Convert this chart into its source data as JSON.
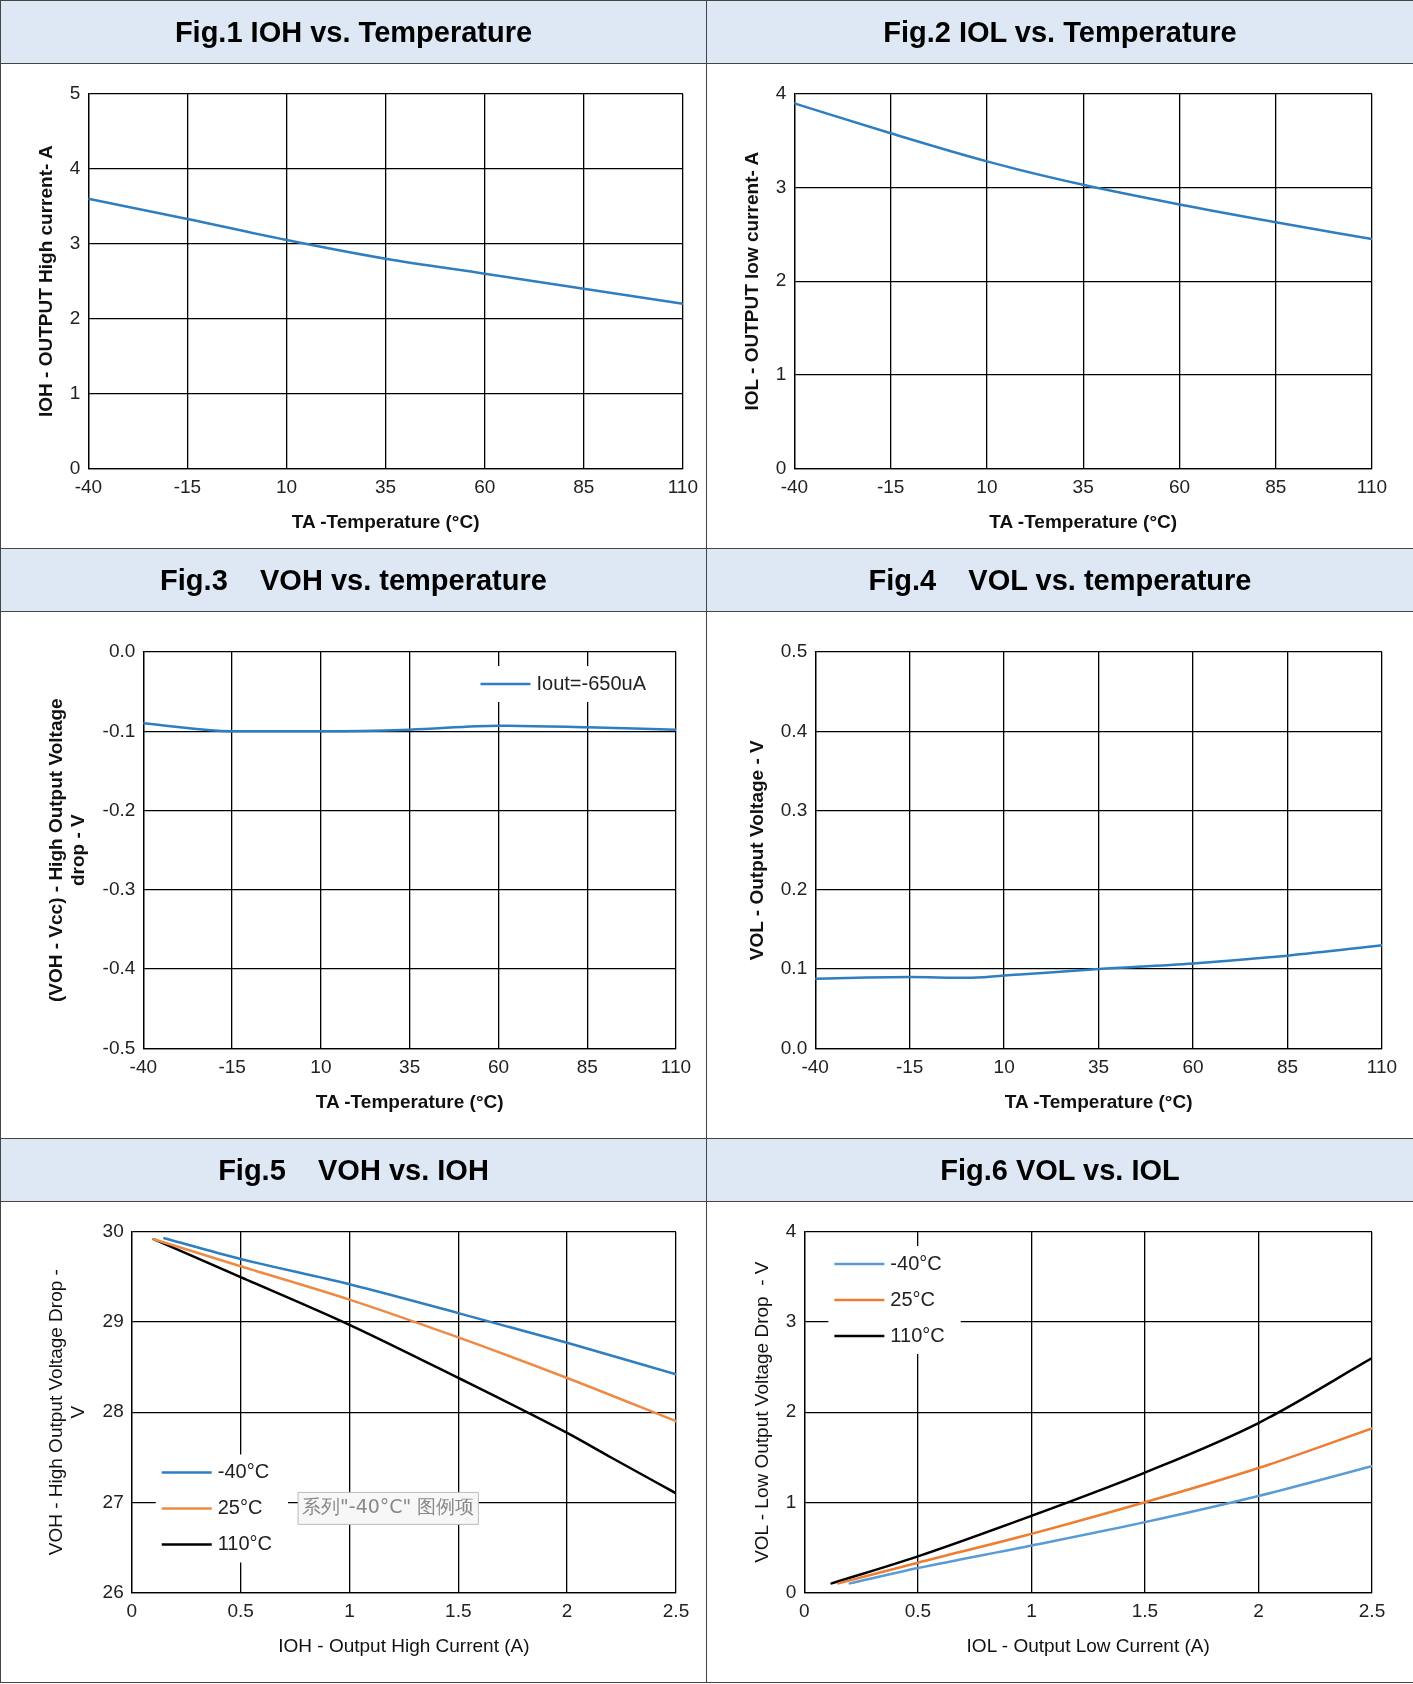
{
  "chart_data": [
    {
      "type": "line",
      "title": "Fig.1 IOH vs. Temperature",
      "xlabel": "TA -Temperature (°C)",
      "ylabel": "IOH - OUTPUT High current- A",
      "x": [
        -40,
        -15,
        10,
        35,
        60,
        85,
        110
      ],
      "values": [
        3.6,
        3.33,
        3.05,
        2.8,
        2.6,
        2.4,
        2.2
      ],
      "color": "#2f7ebf",
      "xlim": [
        -40,
        110
      ],
      "xticks": [
        -40,
        -15,
        10,
        35,
        60,
        85,
        110
      ],
      "ylim": [
        0,
        5
      ],
      "yticks": [
        0,
        1,
        2,
        3,
        4,
        5
      ],
      "grid": true,
      "legend": false,
      "marker": "none",
      "line_style": "solid"
    },
    {
      "type": "line",
      "title": "Fig.2 IOL vs. Temperature",
      "xlabel": "TA -Temperature (°C)",
      "ylabel": "IOL - OUTPUT low current- A",
      "x": [
        -40,
        -15,
        10,
        35,
        60,
        85,
        110
      ],
      "values": [
        3.9,
        3.58,
        3.28,
        3.03,
        2.82,
        2.63,
        2.45
      ],
      "color": "#2f7ebf",
      "xlim": [
        -40,
        110
      ],
      "xticks": [
        -40,
        -15,
        10,
        35,
        60,
        85,
        110
      ],
      "ylim": [
        0,
        4
      ],
      "yticks": [
        0,
        1,
        2,
        3,
        4
      ],
      "grid": true,
      "legend": false,
      "marker": "none",
      "line_style": "solid"
    },
    {
      "type": "line",
      "title": "Fig.3    VOH vs. temperature",
      "xlabel": "TA -Temperature (°C)",
      "ylabel": "(VOH - Vcc) - High Output Voltage drop - V",
      "x": [
        -40,
        -15,
        10,
        35,
        60,
        85,
        110
      ],
      "series": [
        {
          "name": "Iout=-650uA",
          "color": "#2f7ebf",
          "values": [
            -0.09,
            -0.1,
            -0.1,
            -0.098,
            -0.093,
            -0.095,
            -0.098
          ]
        }
      ],
      "xlim": [
        -40,
        110
      ],
      "xticks": [
        -40,
        -15,
        10,
        35,
        60,
        85,
        110
      ],
      "ylim": [
        -0.5,
        0
      ],
      "yticks": [
        {
          "value": 0,
          "label": "0.0"
        },
        -0.1,
        -0.2,
        -0.3,
        -0.4,
        -0.5
      ],
      "grid": true,
      "legend": "top right",
      "marker": "none",
      "line_style": "solid"
    },
    {
      "type": "line",
      "title": "Fig.4    VOL vs. temperature",
      "xlabel": "TA -Temperature (°C)",
      "ylabel": "VOL - Output Voltage - V",
      "x": [
        -40,
        -15,
        0,
        10,
        35,
        60,
        85,
        110
      ],
      "values": [
        0.088,
        0.09,
        0.089,
        0.092,
        0.1,
        0.107,
        0.117,
        0.13
      ],
      "color": "#2f7ebf",
      "xlim": [
        -40,
        110
      ],
      "xticks": [
        -40,
        -15,
        10,
        35,
        60,
        85,
        110
      ],
      "ylim": [
        0,
        0.5
      ],
      "yticks": [
        {
          "value": 0,
          "label": "0.0"
        },
        0.1,
        0.2,
        0.3,
        0.4,
        0.5
      ],
      "grid": true,
      "legend": false,
      "marker": "none",
      "line_style": "solid"
    },
    {
      "type": "line",
      "title": "Fig.5    VOH vs. IOH",
      "xlabel": "IOH - Output High Current (A)",
      "ylabel": "VOH - High Output Voltage Drop - V",
      "series": [
        {
          "name": "-40°C",
          "color": "#2f7ebf",
          "x": [
            0.15,
            0.5,
            1,
            1.5,
            2,
            2.5
          ],
          "values": [
            29.93,
            29.7,
            29.42,
            29.1,
            28.77,
            28.42
          ]
        },
        {
          "name": "25°C",
          "color": "#ed8b45",
          "x": [
            0.1,
            0.5,
            1,
            1.5,
            2,
            2.5
          ],
          "values": [
            29.92,
            29.62,
            29.25,
            28.83,
            28.38,
            27.9
          ]
        },
        {
          "name": "110°C",
          "color": "#000000",
          "x": [
            0.1,
            0.5,
            1,
            1.5,
            2,
            2.2,
            2.5
          ],
          "values": [
            29.92,
            29.5,
            28.97,
            28.38,
            27.77,
            27.5,
            27.1
          ]
        }
      ],
      "xlim": [
        0,
        2.5
      ],
      "xticks": [
        0,
        0.5,
        1,
        1.5,
        2,
        2.5
      ],
      "ylim": [
        26,
        30
      ],
      "yticks": [
        26,
        27,
        28,
        29,
        30
      ],
      "grid": true,
      "legend": "bottom left",
      "marker": "none",
      "line_style": "solid",
      "annotations": [
        "系列\"-40°C\" 图例项"
      ]
    },
    {
      "type": "line",
      "title": "Fig.6 VOL vs. IOL",
      "xlabel": "IOL - Output Low Current (A)",
      "ylabel": "VOL - Low Output Voltage Drop  - V",
      "series": [
        {
          "name": "-40°C",
          "color": "#5b9bd5",
          "x": [
            0.2,
            0.5,
            1,
            1.5,
            2,
            2.5
          ],
          "values": [
            0.1,
            0.27,
            0.52,
            0.78,
            1.07,
            1.4
          ]
        },
        {
          "name": "25°C",
          "color": "#ed7d31",
          "x": [
            0.15,
            0.5,
            1,
            1.5,
            2,
            2.5
          ],
          "values": [
            0.1,
            0.33,
            0.65,
            1.0,
            1.38,
            1.82
          ]
        },
        {
          "name": "110°C",
          "color": "#000000",
          "x": [
            0.12,
            0.5,
            1,
            1.5,
            2,
            2.5
          ],
          "values": [
            0.1,
            0.4,
            0.85,
            1.33,
            1.88,
            2.6
          ]
        }
      ],
      "xlim": [
        0,
        2.5
      ],
      "xticks": [
        0,
        0.5,
        1,
        1.5,
        2,
        2.5
      ],
      "ylim": [
        0,
        4
      ],
      "yticks": [
        0,
        1,
        2,
        3,
        4
      ],
      "grid": true,
      "legend": "top left",
      "marker": "none",
      "line_style": "solid"
    }
  ]
}
